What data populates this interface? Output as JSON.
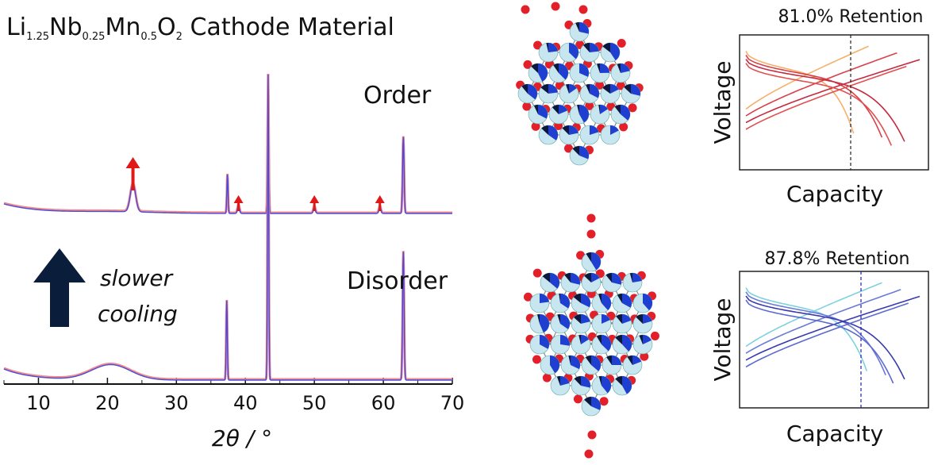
{
  "title": {
    "parts": [
      {
        "text": "Li",
        "sub": "1.25"
      },
      {
        "text": "Nb",
        "sub": "0.25"
      },
      {
        "text": "Mn",
        "sub": "0.5"
      },
      {
        "text": "O",
        "sub": "2"
      },
      {
        "text": " Cathode Material",
        "sub": ""
      }
    ]
  },
  "xrd": {
    "labels": {
      "order": "Order",
      "disorder": "Disorder"
    },
    "cooling_label": [
      "slower",
      "cooling"
    ],
    "chart_data": {
      "type": "line",
      "xlabel": "2θ / °",
      "xlim": [
        5,
        70
      ],
      "xticks": [
        "10",
        "20",
        "30",
        "40",
        "50",
        "60",
        "70"
      ],
      "series": [
        {
          "trace": "order",
          "peaks": [
            {
              "x": 23.7,
              "h": 0.2,
              "w": 0.55
            },
            {
              "x": 37.4,
              "h": 0.28,
              "w": 0.12
            },
            {
              "x": 39.0,
              "h": 0.06,
              "w": 0.2
            },
            {
              "x": 43.3,
              "h": 1.0,
              "w": 0.12
            },
            {
              "x": 50.0,
              "h": 0.05,
              "w": 0.2
            },
            {
              "x": 59.5,
              "h": 0.05,
              "w": 0.2
            },
            {
              "x": 62.9,
              "h": 0.55,
              "w": 0.15
            }
          ],
          "superlattice_arrows": [
            23.7,
            39.0,
            50.0,
            59.5
          ]
        },
        {
          "trace": "disorder",
          "peaks": [
            {
              "x": 20.5,
              "h": 0.05,
              "w": 4.0
            },
            {
              "x": 37.3,
              "h": 0.26,
              "w": 0.12
            },
            {
              "x": 43.3,
              "h": 1.0,
              "w": 0.12
            },
            {
              "x": 62.9,
              "h": 0.42,
              "w": 0.15
            }
          ],
          "superlattice_arrows": []
        }
      ]
    }
  },
  "panels": {
    "top": {
      "retention": "81.0% Retention",
      "xlabel": "Capacity",
      "ylabel": "Voltage"
    },
    "bottom": {
      "retention": "87.8% Retention",
      "xlabel": "Capacity",
      "ylabel": "Voltage"
    }
  },
  "colors": {
    "xrd_calc": "#f08c8c",
    "xrd_obs": "#4a4adc",
    "arrow": "#e01818",
    "big_arrow": "#0a1d3a",
    "oxygen": "#e3202a",
    "cation": "#c8e6f0",
    "mn_wedge": "#1f3fd0",
    "nb_wedge": "#0b1a3c",
    "top_curves": [
      "#f5b06a",
      "#d8404a",
      "#c42a40",
      "#e05050"
    ],
    "bottom_curves": [
      "#7fd0e0",
      "#6a7ad8",
      "#3a3ab0",
      "#5a6ad0"
    ]
  }
}
